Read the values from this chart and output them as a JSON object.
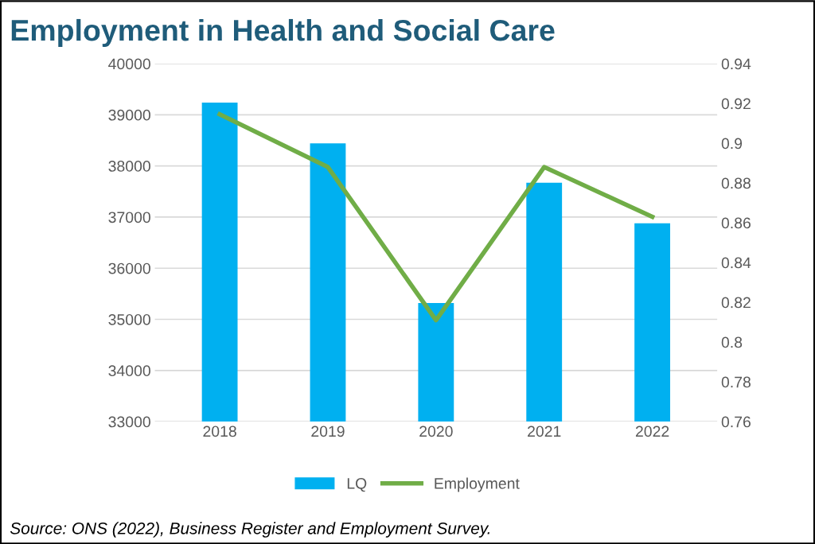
{
  "chart_data": {
    "type": "bar",
    "title": "Employment in Health and Social Care",
    "categories": [
      "2018",
      "2019",
      "2020",
      "2021",
      "2022"
    ],
    "series": [
      {
        "name": "LQ",
        "color": "#00b0f0",
        "values": [
          39240,
          38440,
          35320,
          37670,
          36880
        ]
      },
      {
        "name": "Employment",
        "type": "line",
        "axis": "y2",
        "color": "#70ad47",
        "values": [
          0.9145,
          0.888,
          0.811,
          0.888,
          0.863
        ]
      }
    ],
    "ylim": [
      33000,
      40000
    ],
    "yticks": [
      33000,
      34000,
      35000,
      36000,
      37000,
      38000,
      39000,
      40000
    ],
    "y2lim": [
      0.76,
      0.94
    ],
    "y2ticks": [
      0.76,
      0.78,
      0.8,
      0.82,
      0.84,
      0.86,
      0.88,
      0.9,
      0.92,
      0.94
    ],
    "grid": "y",
    "legend": "bottom",
    "marker": "none",
    "line_style": "solid",
    "annotations": [
      "Source: ONS (2022), Business Register and Employment Survey."
    ]
  }
}
